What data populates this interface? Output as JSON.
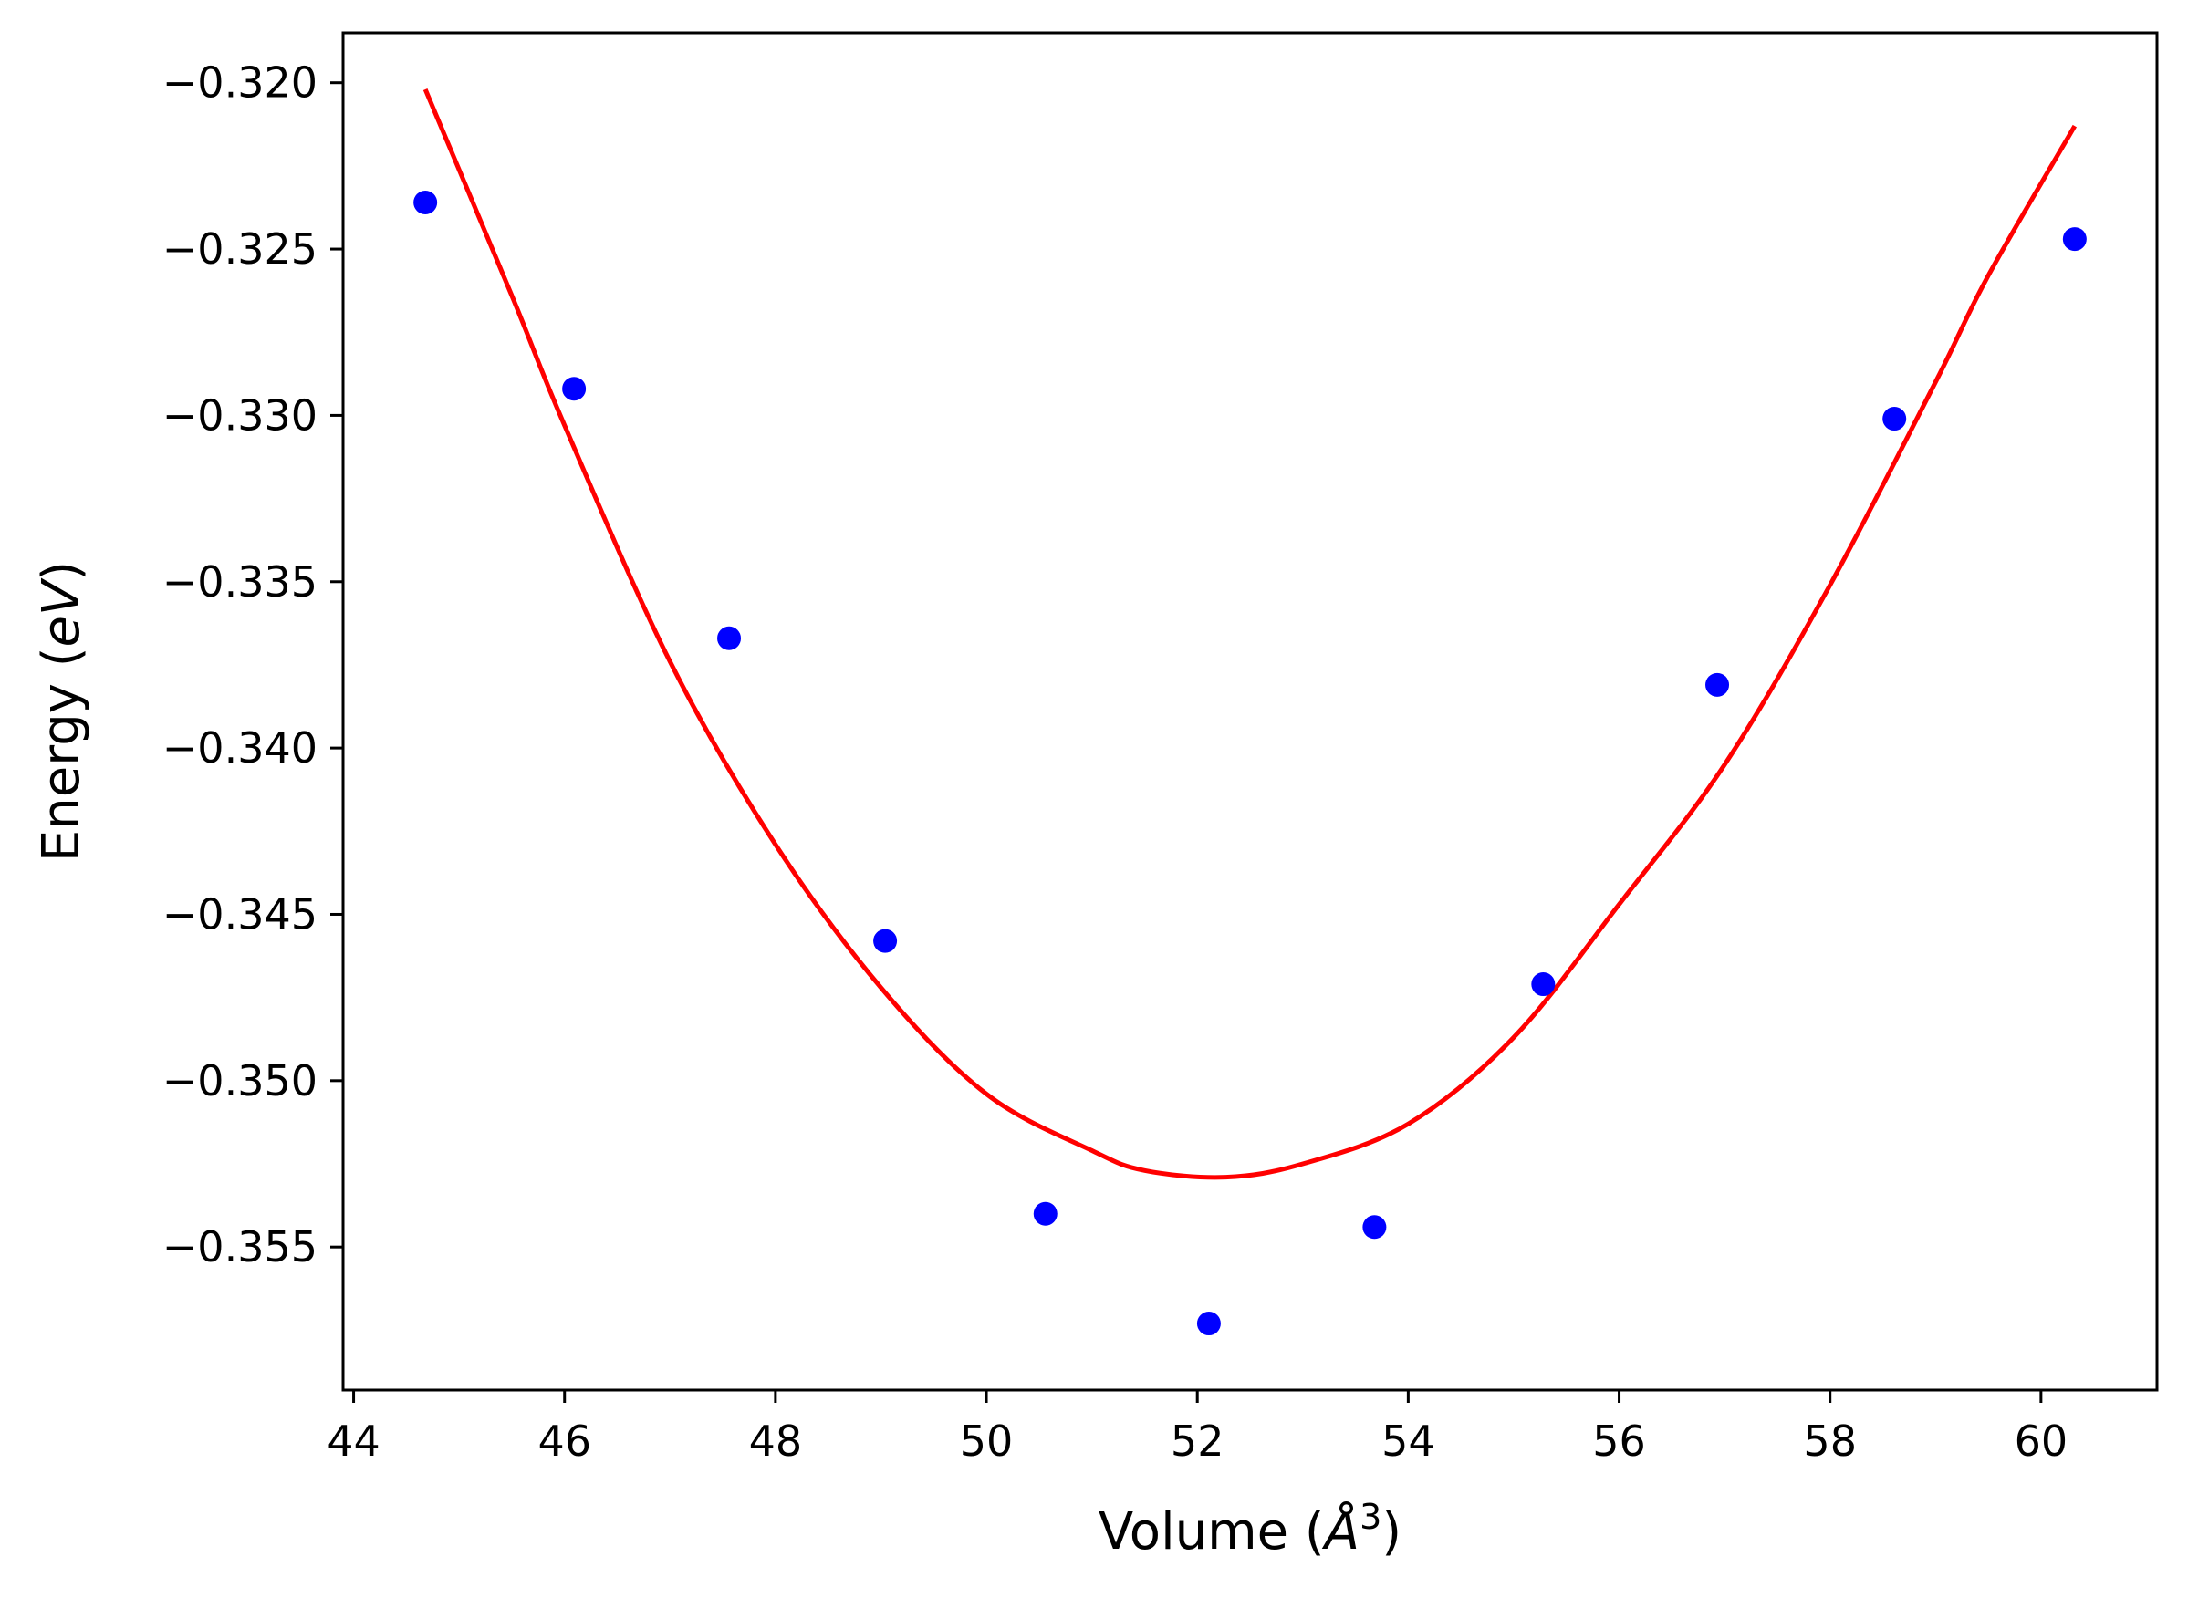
{
  "chart_data": {
    "type": "scatter",
    "title": "",
    "xlabel": {
      "prefix": "Volume (",
      "symbol": "Å",
      "sup": "3",
      "suffix": ")"
    },
    "ylabel": {
      "prefix": "Energy (",
      "italic": "eV",
      "suffix": ")"
    },
    "xlim": [
      43.9,
      61.1
    ],
    "ylim": [
      -0.3593,
      -0.3185
    ],
    "xticks": [
      44,
      46,
      48,
      50,
      52,
      54,
      56,
      58,
      60
    ],
    "xtick_labels": [
      "44",
      "46",
      "48",
      "50",
      "52",
      "54",
      "56",
      "58",
      "60"
    ],
    "yticks": [
      -0.32,
      -0.325,
      -0.33,
      -0.335,
      -0.34,
      -0.345,
      -0.35,
      -0.355
    ],
    "ytick_labels": [
      "−0.320",
      "−0.325",
      "−0.330",
      "−0.335",
      "−0.340",
      "−0.345",
      "−0.350",
      "−0.355"
    ],
    "grid": false,
    "series": [
      {
        "kind": "points",
        "color": "#0000ff",
        "x": [
          44.68,
          46.09,
          47.56,
          49.04,
          50.56,
          52.11,
          53.68,
          55.28,
          56.93,
          58.61,
          60.32
        ],
        "y": [
          -0.3236,
          -0.3292,
          -0.3367,
          -0.3458,
          -0.354,
          -0.3573,
          -0.3544,
          -0.3471,
          -0.3381,
          -0.3301,
          -0.3247
        ]
      },
      {
        "kind": "fit-curve",
        "color": "#ff0000",
        "x": [
          44.68,
          45.5,
          46.0,
          47.0,
          48.0,
          49.0,
          50.0,
          51.0,
          51.5,
          52.27,
          53.0,
          54.0,
          55.0,
          56.0,
          57.0,
          58.0,
          59.0,
          59.5,
          60.32
        ],
        "y": [
          -0.3202,
          -0.3264,
          -0.3303,
          -0.3374,
          -0.3429,
          -0.3472,
          -0.3504,
          -0.3521,
          -0.3527,
          -0.3529,
          -0.3525,
          -0.3513,
          -0.3487,
          -0.3447,
          -0.3405,
          -0.3351,
          -0.329,
          -0.3258,
          -0.3213
        ]
      }
    ]
  }
}
